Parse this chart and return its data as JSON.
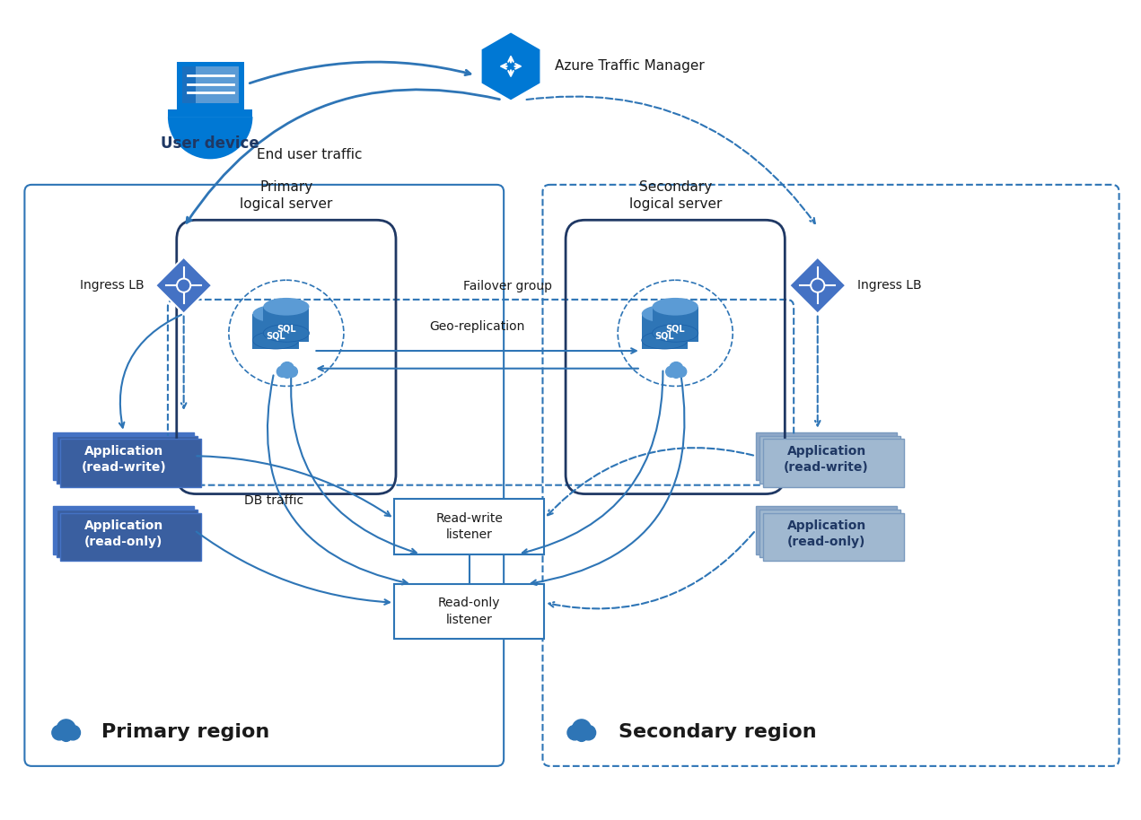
{
  "bg_color": "#ffffff",
  "blue_dark": "#1f3864",
  "blue_mid": "#2e75b6",
  "blue_icon": "#0078d4",
  "blue_light": "#4472c4",
  "blue_pale": "#8faadc",
  "blue_app_right": "#8ea9c8",
  "text_black": "#1a1a1a",
  "labels": {
    "user_device": "User device",
    "azure_tm": "Azure Traffic Manager",
    "end_user_traffic": "End user traffic",
    "ingress_lb_left": "Ingress LB",
    "ingress_lb_right": "Ingress LB",
    "primary_logical": "Primary\nlogical server",
    "secondary_logical": "Secondary\nlogical server",
    "failover_group": "Failover group",
    "geo_replication": "Geo-replication",
    "app_rw_left": "Application\n(read-write)",
    "app_ro_left": "Application\n(read-only)",
    "app_rw_right": "Application\n(read-write)",
    "app_ro_right": "Application\n(read-only)",
    "db_traffic": "DB traffic",
    "rw_listener": "Read-write\nlistener",
    "ro_listener": "Read-only\nlistener",
    "primary_region": "Primary region",
    "secondary_region": "Secondary region"
  }
}
